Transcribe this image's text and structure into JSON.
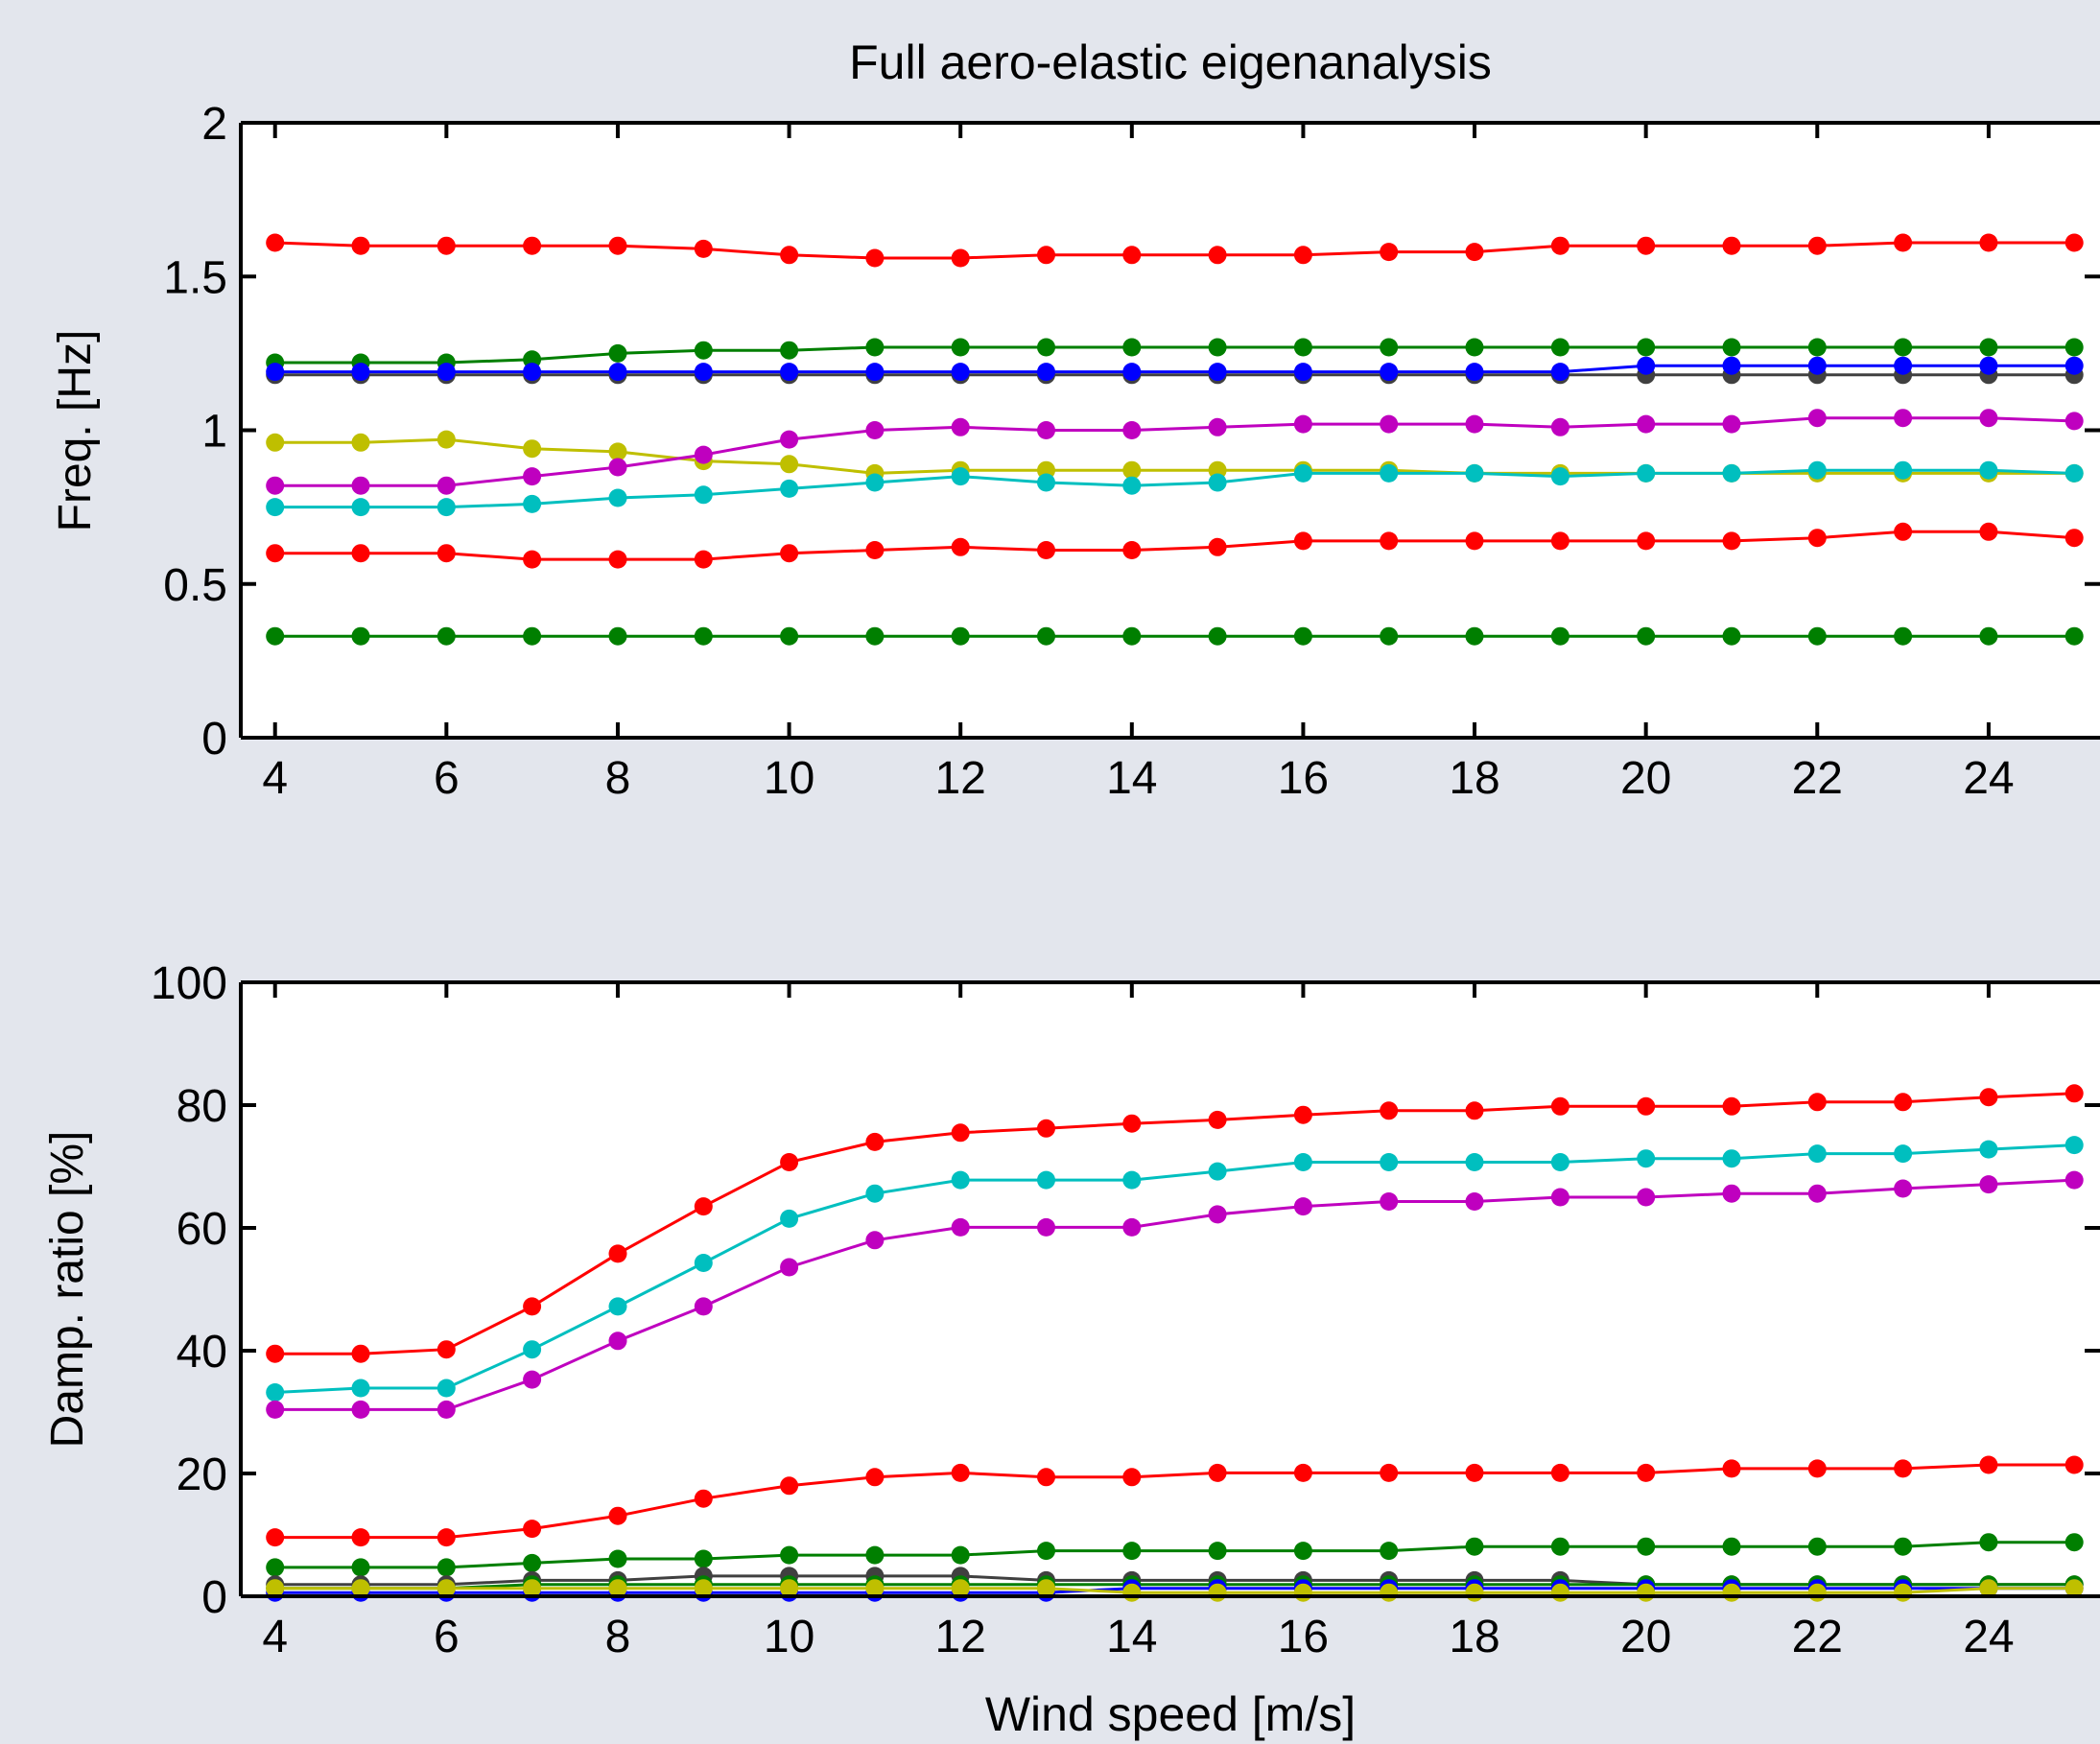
{
  "chart_data": [
    {
      "type": "line",
      "title": "Full aero-elastic eigenanalysis",
      "xlabel": "",
      "ylabel": "Freq. [Hz]",
      "xlim": [
        3.6,
        25.3
      ],
      "ylim": [
        0,
        2
      ],
      "xticks": [
        4,
        6,
        8,
        10,
        12,
        14,
        16,
        18,
        20,
        22,
        24
      ],
      "yticks": [
        0,
        0.5,
        1,
        1.5,
        2
      ],
      "ytick_labels": [
        "0",
        "0.5",
        "1",
        "1.5",
        "2"
      ],
      "grid": false,
      "x": [
        4,
        5,
        6,
        7,
        8,
        9,
        10,
        11,
        12,
        13,
        14,
        15,
        16,
        17,
        18,
        19,
        20,
        21,
        22,
        23,
        24,
        25
      ],
      "series": [
        {
          "color": "#ff0000",
          "values": [
            1.61,
            1.6,
            1.6,
            1.6,
            1.6,
            1.59,
            1.57,
            1.56,
            1.56,
            1.57,
            1.57,
            1.57,
            1.57,
            1.58,
            1.58,
            1.6,
            1.6,
            1.6,
            1.6,
            1.61,
            1.61,
            1.61
          ]
        },
        {
          "color": "#007f00",
          "values": [
            1.22,
            1.22,
            1.22,
            1.23,
            1.25,
            1.26,
            1.26,
            1.27,
            1.27,
            1.27,
            1.27,
            1.27,
            1.27,
            1.27,
            1.27,
            1.27,
            1.27,
            1.27,
            1.27,
            1.27,
            1.27,
            1.27
          ]
        },
        {
          "color": "#404040",
          "values": [
            1.18,
            1.18,
            1.18,
            1.18,
            1.18,
            1.18,
            1.18,
            1.18,
            1.18,
            1.18,
            1.18,
            1.18,
            1.18,
            1.18,
            1.18,
            1.18,
            1.18,
            1.18,
            1.18,
            1.18,
            1.18,
            1.18
          ]
        },
        {
          "color": "#0000ff",
          "values": [
            1.19,
            1.19,
            1.19,
            1.19,
            1.19,
            1.19,
            1.19,
            1.19,
            1.19,
            1.19,
            1.19,
            1.19,
            1.19,
            1.19,
            1.19,
            1.19,
            1.21,
            1.21,
            1.21,
            1.21,
            1.21,
            1.21
          ]
        },
        {
          "color": "#bfbf00",
          "values": [
            0.96,
            0.96,
            0.97,
            0.94,
            0.93,
            0.9,
            0.89,
            0.86,
            0.87,
            0.87,
            0.87,
            0.87,
            0.87,
            0.87,
            0.86,
            0.86,
            0.86,
            0.86,
            0.86,
            0.86,
            0.86,
            0.86
          ]
        },
        {
          "color": "#bf00bf",
          "values": [
            0.82,
            0.82,
            0.82,
            0.85,
            0.88,
            0.92,
            0.97,
            1.0,
            1.01,
            1.0,
            1.0,
            1.01,
            1.02,
            1.02,
            1.02,
            1.01,
            1.02,
            1.02,
            1.04,
            1.04,
            1.04,
            1.03
          ]
        },
        {
          "color": "#00bfbf",
          "values": [
            0.75,
            0.75,
            0.75,
            0.76,
            0.78,
            0.79,
            0.81,
            0.83,
            0.85,
            0.83,
            0.82,
            0.83,
            0.86,
            0.86,
            0.86,
            0.85,
            0.86,
            0.86,
            0.87,
            0.87,
            0.87,
            0.86
          ]
        },
        {
          "color": "#ff0000",
          "values": [
            0.6,
            0.6,
            0.6,
            0.58,
            0.58,
            0.58,
            0.6,
            0.61,
            0.62,
            0.61,
            0.61,
            0.62,
            0.64,
            0.64,
            0.64,
            0.64,
            0.64,
            0.64,
            0.65,
            0.67,
            0.67,
            0.65
          ]
        },
        {
          "color": "#007f00",
          "values": [
            0.33,
            0.33,
            0.33,
            0.33,
            0.33,
            0.33,
            0.33,
            0.33,
            0.33,
            0.33,
            0.33,
            0.33,
            0.33,
            0.33,
            0.33,
            0.33,
            0.33,
            0.33,
            0.33,
            0.33,
            0.33,
            0.33
          ]
        }
      ]
    },
    {
      "type": "line",
      "title": "",
      "xlabel": "Wind speed [m/s]",
      "ylabel": "Damp. ratio [%]",
      "xlim": [
        3.6,
        25.3
      ],
      "ylim": [
        0,
        100
      ],
      "xticks": [
        4,
        6,
        8,
        10,
        12,
        14,
        16,
        18,
        20,
        22,
        24
      ],
      "yticks": [
        0,
        20,
        40,
        60,
        80,
        100
      ],
      "ytick_labels": [
        "0",
        "20",
        "40",
        "60",
        "80",
        "100"
      ],
      "grid": false,
      "x": [
        4,
        5,
        6,
        7,
        8,
        9,
        10,
        11,
        12,
        13,
        14,
        15,
        16,
        17,
        18,
        19,
        20,
        21,
        22,
        23,
        24,
        25
      ],
      "series": [
        {
          "color": "#ff0000",
          "values": [
            39.5,
            39.5,
            40.2,
            47.2,
            55.8,
            63.5,
            70.7,
            74.0,
            75.5,
            76.2,
            77.0,
            77.6,
            78.4,
            79.1,
            79.1,
            79.8,
            79.8,
            79.8,
            80.5,
            80.5,
            81.3,
            81.9
          ]
        },
        {
          "color": "#00bfbf",
          "values": [
            33.2,
            33.9,
            33.9,
            40.2,
            47.2,
            54.3,
            61.5,
            65.6,
            67.8,
            67.8,
            67.8,
            69.2,
            70.7,
            70.7,
            70.7,
            70.7,
            71.3,
            71.3,
            72.1,
            72.1,
            72.8,
            73.5
          ]
        },
        {
          "color": "#bf00bf",
          "values": [
            30.4,
            30.4,
            30.4,
            35.3,
            41.6,
            47.2,
            53.6,
            58.0,
            60.1,
            60.1,
            60.1,
            62.2,
            63.5,
            64.3,
            64.3,
            65.0,
            65.0,
            65.6,
            65.6,
            66.4,
            67.1,
            67.8
          ]
        },
        {
          "color": "#ff0000",
          "values": [
            9.6,
            9.6,
            9.6,
            11.0,
            13.1,
            15.9,
            18.0,
            19.4,
            20.1,
            19.4,
            19.4,
            20.1,
            20.1,
            20.1,
            20.1,
            20.1,
            20.1,
            20.8,
            20.8,
            20.8,
            21.4,
            21.4
          ]
        },
        {
          "color": "#007f00",
          "values": [
            4.7,
            4.7,
            4.7,
            5.4,
            6.1,
            6.1,
            6.7,
            6.7,
            6.7,
            7.4,
            7.4,
            7.4,
            7.4,
            7.4,
            8.1,
            8.1,
            8.1,
            8.1,
            8.1,
            8.1,
            8.8,
            8.8
          ]
        },
        {
          "color": "#404040",
          "values": [
            1.9,
            1.9,
            1.9,
            2.6,
            2.6,
            3.3,
            3.3,
            3.3,
            3.3,
            2.6,
            2.6,
            2.6,
            2.6,
            2.6,
            2.6,
            2.6,
            1.9,
            1.9,
            1.9,
            1.9,
            1.9,
            1.9
          ]
        },
        {
          "color": "#007f00",
          "values": [
            1.3,
            1.3,
            1.3,
            1.9,
            1.9,
            1.9,
            1.9,
            1.9,
            1.9,
            1.9,
            1.9,
            1.9,
            1.9,
            1.9,
            1.9,
            1.9,
            1.9,
            1.9,
            1.9,
            1.9,
            1.9,
            1.9
          ]
        },
        {
          "color": "#0000ff",
          "values": [
            0.6,
            0.6,
            0.6,
            0.6,
            0.6,
            0.6,
            0.6,
            0.6,
            0.6,
            0.6,
            1.3,
            1.3,
            1.3,
            1.3,
            1.3,
            1.3,
            1.3,
            1.3,
            1.3,
            1.3,
            1.3,
            1.3
          ]
        },
        {
          "color": "#bfbf00",
          "values": [
            1.3,
            1.3,
            1.3,
            1.3,
            1.3,
            1.3,
            1.3,
            1.3,
            1.3,
            1.3,
            0.6,
            0.6,
            0.6,
            0.6,
            0.6,
            0.6,
            0.6,
            0.6,
            0.6,
            0.6,
            1.3,
            1.3
          ]
        }
      ]
    }
  ]
}
